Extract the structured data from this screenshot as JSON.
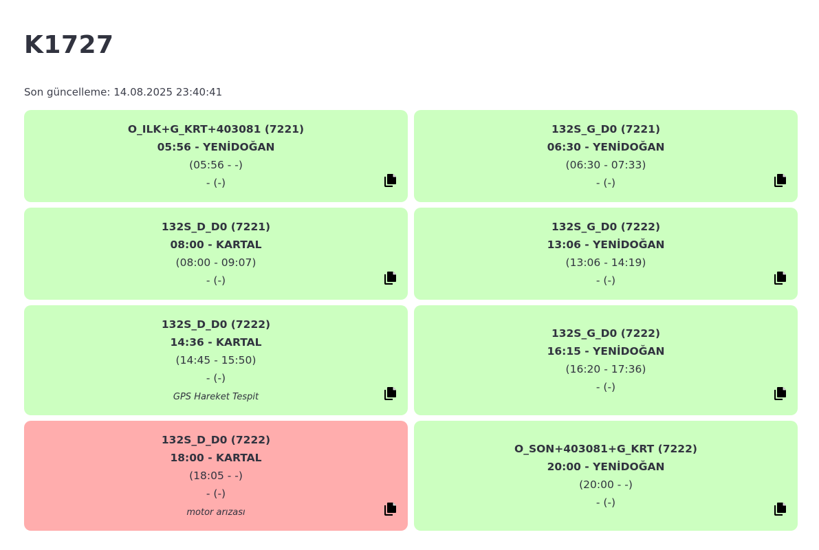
{
  "header": {
    "title": "K1727",
    "last_update": "Son güncelleme: 14.08.2025 23:40:41"
  },
  "colors": {
    "ok": "#ccffc0",
    "bad": "#ffadad"
  },
  "cards": [
    {
      "status": "ok",
      "route": "O_ILK+G_KRT+403081 (7221)",
      "departure": "05:56 - YENİDOĞAN",
      "actual": "(05:56 - -)",
      "extra": "- (-)",
      "note": "",
      "icon": "copy-icon"
    },
    {
      "status": "ok",
      "route": "132S_G_D0 (7221)",
      "departure": "06:30 - YENİDOĞAN",
      "actual": "(06:30 - 07:33)",
      "extra": "- (-)",
      "note": "",
      "icon": "copy-icon"
    },
    {
      "status": "ok",
      "route": "132S_D_D0 (7221)",
      "departure": "08:00 - KARTAL",
      "actual": "(08:00 - 09:07)",
      "extra": "- (-)",
      "note": "",
      "icon": "copy-icon"
    },
    {
      "status": "ok",
      "route": "132S_G_D0 (7222)",
      "departure": "13:06 - YENİDOĞAN",
      "actual": "(13:06 - 14:19)",
      "extra": "- (-)",
      "note": "",
      "icon": "copy-icon"
    },
    {
      "status": "ok",
      "route": "132S_D_D0 (7222)",
      "departure": "14:36 - KARTAL",
      "actual": "(14:45 - 15:50)",
      "extra": "- (-)",
      "note": "GPS Hareket Tespit",
      "icon": "copy-icon"
    },
    {
      "status": "ok",
      "route": "132S_G_D0 (7222)",
      "departure": "16:15 - YENİDOĞAN",
      "actual": "(16:20 - 17:36)",
      "extra": "- (-)",
      "note": "",
      "icon": "copy-icon"
    },
    {
      "status": "bad",
      "route": "132S_D_D0 (7222)",
      "departure": "18:00 - KARTAL",
      "actual": "(18:05 - -)",
      "extra": "- (-)",
      "note": "motor arızası",
      "icon": "copy-icon"
    },
    {
      "status": "ok",
      "route": "O_SON+403081+G_KRT (7222)",
      "departure": "20:00 - YENİDOĞAN",
      "actual": "(20:00 - -)",
      "extra": "- (-)",
      "note": "",
      "icon": "copy-icon"
    }
  ]
}
